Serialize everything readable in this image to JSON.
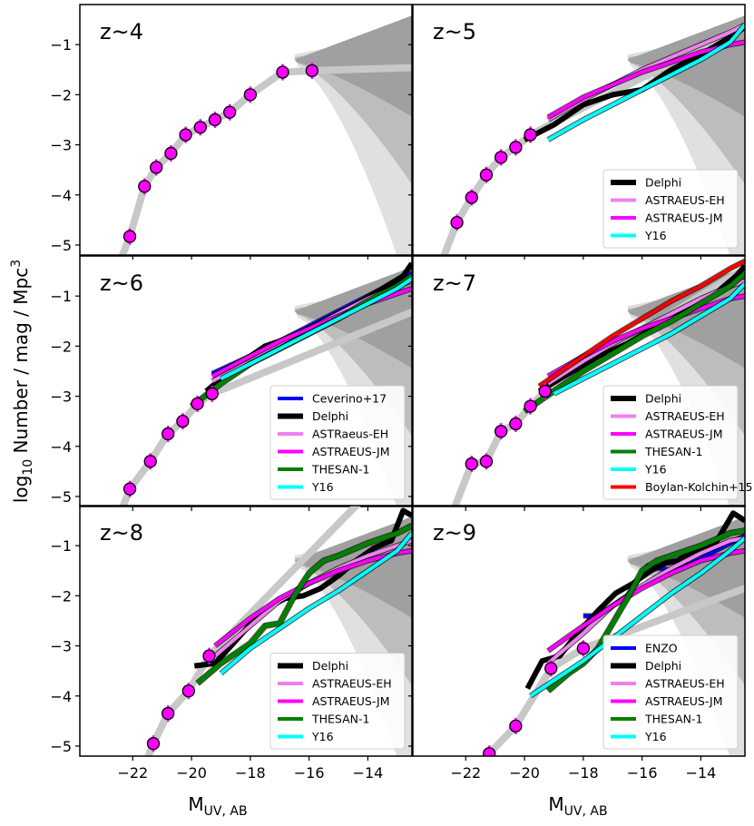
{
  "figure": {
    "xlabel": "M_UV,AB",
    "ylabel": "log10 Number / mag / Mpc^3"
  },
  "chart_data": [
    {
      "type": "line",
      "label": "z~4",
      "xlim": [
        -23.8,
        -12.5
      ],
      "ylim": [
        -5.2,
        -0.2
      ],
      "observations": {
        "x": [
          -22.1,
          -21.6,
          -21.2,
          -20.7,
          -20.2,
          -19.7,
          -19.2,
          -18.7,
          -18.0,
          -16.9,
          -15.9
        ],
        "y": [
          -4.83,
          -3.83,
          -3.45,
          -3.17,
          -2.8,
          -2.65,
          -2.5,
          -2.35,
          -2.0,
          -1.55,
          -1.52
        ]
      },
      "series": [],
      "legend": []
    },
    {
      "type": "line",
      "label": "z~5",
      "xlim": [
        -23.8,
        -12.5
      ],
      "ylim": [
        -5.2,
        -0.2
      ],
      "observations": {
        "x": [
          -22.3,
          -21.8,
          -21.3,
          -20.8,
          -20.3,
          -19.8
        ],
        "y": [
          -4.55,
          -4.05,
          -3.6,
          -3.25,
          -3.05,
          -2.8
        ]
      },
      "series": [
        {
          "name": "Delphi",
          "color": "#000000",
          "x": [
            -20.0,
            -19.0,
            -18.0,
            -17.0,
            -16.0,
            -15.0,
            -14.0,
            -13.0,
            -12.5
          ],
          "y": [
            -2.9,
            -2.6,
            -2.2,
            -2.0,
            -1.9,
            -1.5,
            -1.2,
            -0.85,
            -0.65
          ]
        },
        {
          "name": "ASTRAEUS-EH",
          "color": "#ee82ee",
          "x": [
            -19.2,
            -18.0,
            -17.0,
            -16.0,
            -15.0,
            -14.0,
            -13.0,
            -12.5
          ],
          "y": [
            -2.5,
            -2.1,
            -1.8,
            -1.5,
            -1.25,
            -1.0,
            -0.75,
            -0.6
          ]
        },
        {
          "name": "ASTRAEUS-JM",
          "color": "#ff00ff",
          "x": [
            -19.2,
            -18.0,
            -17.0,
            -16.0,
            -15.0,
            -14.0,
            -13.0,
            -12.5
          ],
          "y": [
            -2.45,
            -2.05,
            -1.8,
            -1.55,
            -1.35,
            -1.15,
            -1.0,
            -0.95
          ]
        },
        {
          "name": "Y16",
          "color": "#00ffff",
          "x": [
            -19.2,
            -18.0,
            -17.0,
            -16.0,
            -15.0,
            -14.0,
            -13.0,
            -12.5
          ],
          "y": [
            -2.9,
            -2.5,
            -2.2,
            -1.9,
            -1.6,
            -1.3,
            -0.95,
            -0.6
          ]
        }
      ],
      "legend": [
        "Delphi",
        "ASTRAEUS-EH",
        "ASTRAEUS-JM",
        "Y16"
      ]
    },
    {
      "type": "line",
      "label": "z~6",
      "xlim": [
        -23.8,
        -12.5
      ],
      "ylim": [
        -5.2,
        -0.2
      ],
      "observations": {
        "x": [
          -22.1,
          -21.4,
          -20.8,
          -20.3,
          -19.8,
          -19.3
        ],
        "y": [
          -4.85,
          -4.3,
          -3.75,
          -3.5,
          -3.15,
          -2.95
        ]
      },
      "series": [
        {
          "name": "Ceverino+17",
          "color": "#0000ff",
          "x": [
            -19.3,
            -18.0,
            -17.0,
            -16.0,
            -15.0,
            -14.0,
            -13.0,
            -12.5
          ],
          "y": [
            -2.55,
            -2.2,
            -1.9,
            -1.6,
            -1.3,
            -1.0,
            -0.7,
            -0.55
          ]
        },
        {
          "name": "Delphi",
          "color": "#000000",
          "x": [
            -19.5,
            -18.5,
            -17.5,
            -16.5,
            -15.5,
            -14.5,
            -13.5,
            -12.8,
            -12.5
          ],
          "y": [
            -2.9,
            -2.4,
            -2.0,
            -1.8,
            -1.5,
            -1.2,
            -0.85,
            -0.6,
            -0.35
          ]
        },
        {
          "name": "ASTRaeus-EH",
          "color": "#ee82ee",
          "x": [
            -19.3,
            -18.0,
            -17.0,
            -16.0,
            -15.0,
            -14.0,
            -13.0,
            -12.5
          ],
          "y": [
            -2.7,
            -2.3,
            -1.95,
            -1.65,
            -1.35,
            -1.05,
            -0.8,
            -0.7
          ]
        },
        {
          "name": "ASTRAEUS-JM",
          "color": "#ff00ff",
          "x": [
            -19.3,
            -18.0,
            -17.0,
            -16.0,
            -15.0,
            -14.0,
            -13.0,
            -12.5
          ],
          "y": [
            -2.6,
            -2.2,
            -1.9,
            -1.65,
            -1.4,
            -1.15,
            -0.95,
            -0.85
          ]
        },
        {
          "name": "THESAN-1",
          "color": "#008000",
          "x": [
            -20.0,
            -19.0,
            -18.0,
            -17.0,
            -16.0,
            -15.0,
            -14.0,
            -13.0,
            -12.5
          ],
          "y": [
            -3.2,
            -2.75,
            -2.35,
            -2.05,
            -1.75,
            -1.45,
            -1.1,
            -0.8,
            -0.6
          ]
        },
        {
          "name": "Y16",
          "color": "#00ffff",
          "x": [
            -19.0,
            -18.0,
            -17.0,
            -16.0,
            -15.0,
            -14.0,
            -13.0,
            -12.5
          ],
          "y": [
            -2.65,
            -2.35,
            -2.05,
            -1.75,
            -1.45,
            -1.15,
            -0.85,
            -0.65
          ]
        }
      ],
      "legend": [
        "Ceverino+17",
        "Delphi",
        "ASTRaeus-EH",
        "ASTRAEUS-JM",
        "THESAN-1",
        "Y16"
      ]
    },
    {
      "type": "line",
      "label": "z~7",
      "xlim": [
        -23.8,
        -12.5
      ],
      "ylim": [
        -5.2,
        -0.2
      ],
      "observations": {
        "x": [
          -21.8,
          -21.3,
          -20.8,
          -20.3,
          -19.8,
          -19.3
        ],
        "y": [
          -4.35,
          -4.3,
          -3.7,
          -3.55,
          -3.2,
          -2.9
        ]
      },
      "series": [
        {
          "name": "Delphi",
          "color": "#000000",
          "x": [
            -19.5,
            -18.5,
            -17.5,
            -16.5,
            -15.5,
            -14.5,
            -13.5,
            -12.8,
            -12.5
          ],
          "y": [
            -2.9,
            -2.55,
            -2.2,
            -1.95,
            -1.6,
            -1.3,
            -0.95,
            -0.6,
            -0.4
          ]
        },
        {
          "name": "ASTRAEUS-EH",
          "color": "#ee82ee",
          "x": [
            -19.2,
            -18.0,
            -17.0,
            -16.0,
            -15.0,
            -14.0,
            -13.0,
            -12.5
          ],
          "y": [
            -2.75,
            -2.3,
            -1.95,
            -1.65,
            -1.35,
            -1.05,
            -0.8,
            -0.7
          ]
        },
        {
          "name": "ASTRAEUS-JM",
          "color": "#ff00ff",
          "x": [
            -19.2,
            -18.0,
            -17.0,
            -16.0,
            -15.0,
            -14.0,
            -13.0,
            -12.5
          ],
          "y": [
            -2.6,
            -2.2,
            -1.9,
            -1.65,
            -1.45,
            -1.25,
            -1.05,
            -1.0
          ]
        },
        {
          "name": "THESAN-1",
          "color": "#008000",
          "x": [
            -20.0,
            -19.0,
            -18.0,
            -17.0,
            -16.0,
            -15.0,
            -14.0,
            -13.0,
            -12.5
          ],
          "y": [
            -3.3,
            -2.9,
            -2.5,
            -2.15,
            -1.8,
            -1.5,
            -1.15,
            -0.8,
            -0.55
          ]
        },
        {
          "name": "Y16",
          "color": "#00ffff",
          "x": [
            -19.0,
            -18.0,
            -17.0,
            -16.0,
            -15.0,
            -14.0,
            -13.0,
            -12.5
          ],
          "y": [
            -2.95,
            -2.65,
            -2.35,
            -2.05,
            -1.75,
            -1.4,
            -1.05,
            -0.75
          ]
        },
        {
          "name": "Boylan-Kolchin+15",
          "color": "#ff0000",
          "x": [
            -19.5,
            -18.0,
            -17.0,
            -16.0,
            -15.0,
            -14.0,
            -13.0,
            -12.5
          ],
          "y": [
            -2.8,
            -2.2,
            -1.8,
            -1.45,
            -1.1,
            -0.8,
            -0.45,
            -0.3
          ]
        }
      ],
      "legend": [
        "Delphi",
        "ASTRAEUS-EH",
        "ASTRAEUS-JM",
        "THESAN-1",
        "Y16",
        "Boylan-Kolchin+15"
      ]
    },
    {
      "type": "line",
      "label": "z~8",
      "xlim": [
        -23.8,
        -12.5
      ],
      "ylim": [
        -5.2,
        -0.2
      ],
      "observations": {
        "x": [
          -21.3,
          -20.8,
          -20.1,
          -19.4
        ],
        "y": [
          -4.95,
          -4.35,
          -3.9,
          -3.2
        ]
      },
      "series": [
        {
          "name": "Delphi",
          "color": "#000000",
          "x": [
            -19.9,
            -19.2,
            -18.5,
            -17.9,
            -17.3,
            -16.8,
            -16.2,
            -15.6,
            -15.0,
            -14.4,
            -13.8,
            -13.2,
            -12.8,
            -12.5
          ],
          "y": [
            -3.4,
            -3.35,
            -2.9,
            -2.5,
            -2.2,
            -2.05,
            -2.0,
            -1.85,
            -1.6,
            -1.3,
            -1.05,
            -0.9,
            -0.3,
            -0.4
          ]
        },
        {
          "name": "ASTRAEUS-EH",
          "color": "#ee82ee",
          "x": [
            -19.2,
            -18.0,
            -17.0,
            -16.0,
            -15.0,
            -14.0,
            -13.0,
            -12.5
          ],
          "y": [
            -3.2,
            -2.6,
            -2.1,
            -1.75,
            -1.45,
            -1.2,
            -1.0,
            -0.9
          ]
        },
        {
          "name": "ASTRAEUS-JM",
          "color": "#ff00ff",
          "x": [
            -19.2,
            -18.0,
            -17.0,
            -16.0,
            -15.0,
            -14.0,
            -13.0,
            -12.5
          ],
          "y": [
            -3.0,
            -2.45,
            -2.05,
            -1.75,
            -1.5,
            -1.3,
            -1.15,
            -1.1
          ]
        },
        {
          "name": "THESAN-1",
          "color": "#008000",
          "x": [
            -19.8,
            -19.0,
            -18.0,
            -17.5,
            -17.0,
            -16.5,
            -16.0,
            -15.5,
            -15.0,
            -14.0,
            -13.0,
            -12.5
          ],
          "y": [
            -3.75,
            -3.35,
            -2.95,
            -2.6,
            -2.55,
            -2.0,
            -1.55,
            -1.3,
            -1.2,
            -0.95,
            -0.75,
            -0.6
          ]
        },
        {
          "name": "Y16",
          "color": "#00ffff",
          "x": [
            -19.0,
            -18.0,
            -17.0,
            -16.0,
            -15.0,
            -14.0,
            -13.0,
            -12.5
          ],
          "y": [
            -3.55,
            -3.05,
            -2.65,
            -2.25,
            -1.9,
            -1.5,
            -1.1,
            -0.75
          ]
        }
      ],
      "legend": [
        "Delphi",
        "ASTRAEUS-EH",
        "ASTRAEUS-JM",
        "THESAN-1",
        "Y16"
      ]
    },
    {
      "type": "line",
      "label": "z~9",
      "xlim": [
        -23.8,
        -12.5
      ],
      "ylim": [
        -5.2,
        -0.2
      ],
      "observations": {
        "x": [
          -21.2,
          -20.3,
          -19.1,
          -18.0
        ],
        "y": [
          -5.15,
          -4.6,
          -3.45,
          -3.05
        ]
      },
      "series": [
        {
          "name": "ENZO",
          "color": "#0000ff",
          "x": [
            -18.0,
            -17.5,
            -16.5,
            -15.8,
            -15.0,
            -14.3,
            -13.5,
            -12.5
          ],
          "y": [
            -2.4,
            -2.4,
            -2.0,
            -1.4,
            -1.5,
            -1.35,
            -1.1,
            -0.8
          ]
        },
        {
          "name": "Delphi",
          "color": "#000000",
          "x": [
            -19.9,
            -19.4,
            -18.8,
            -18.2,
            -17.5,
            -16.9,
            -16.3,
            -15.7,
            -15.2,
            -14.8,
            -14.2,
            -13.5,
            -12.9,
            -12.5
          ],
          "y": [
            -3.85,
            -3.3,
            -3.2,
            -2.75,
            -2.3,
            -1.95,
            -1.75,
            -1.5,
            -1.35,
            -1.3,
            -1.1,
            -0.95,
            -0.35,
            -0.5
          ]
        },
        {
          "name": "ASTRAEUS-EH",
          "color": "#ee82ee",
          "x": [
            -19.2,
            -18.0,
            -17.0,
            -16.0,
            -15.0,
            -14.0,
            -13.0,
            -12.5
          ],
          "y": [
            -3.35,
            -2.75,
            -2.2,
            -1.8,
            -1.45,
            -1.15,
            -0.9,
            -0.85
          ]
        },
        {
          "name": "ASTRAEUS-JM",
          "color": "#ff00ff",
          "x": [
            -19.2,
            -18.0,
            -17.0,
            -16.0,
            -15.0,
            -14.0,
            -13.0,
            -12.5
          ],
          "y": [
            -3.1,
            -2.6,
            -2.2,
            -1.85,
            -1.55,
            -1.3,
            -1.15,
            -1.1
          ]
        },
        {
          "name": "THESAN-1",
          "color": "#008000",
          "x": [
            -19.2,
            -18.5,
            -18.0,
            -17.5,
            -17.0,
            -16.5,
            -16.0,
            -15.5,
            -15.0,
            -14.0,
            -13.0,
            -12.5
          ],
          "y": [
            -3.9,
            -3.55,
            -3.35,
            -3.05,
            -2.55,
            -2.05,
            -1.5,
            -1.3,
            -1.2,
            -1.0,
            -0.75,
            -0.7
          ]
        },
        {
          "name": "Y16",
          "color": "#00ffff",
          "x": [
            -19.8,
            -18.0,
            -17.0,
            -16.0,
            -15.0,
            -14.0,
            -13.0,
            -12.5
          ],
          "y": [
            -4.0,
            -3.3,
            -2.85,
            -2.4,
            -1.95,
            -1.55,
            -1.1,
            -0.85
          ]
        }
      ],
      "legend": [
        "ENZO",
        "Delphi",
        "ASTRAEUS-EH",
        "ASTRAEUS-JM",
        "THESAN-1",
        "Y16"
      ]
    }
  ]
}
